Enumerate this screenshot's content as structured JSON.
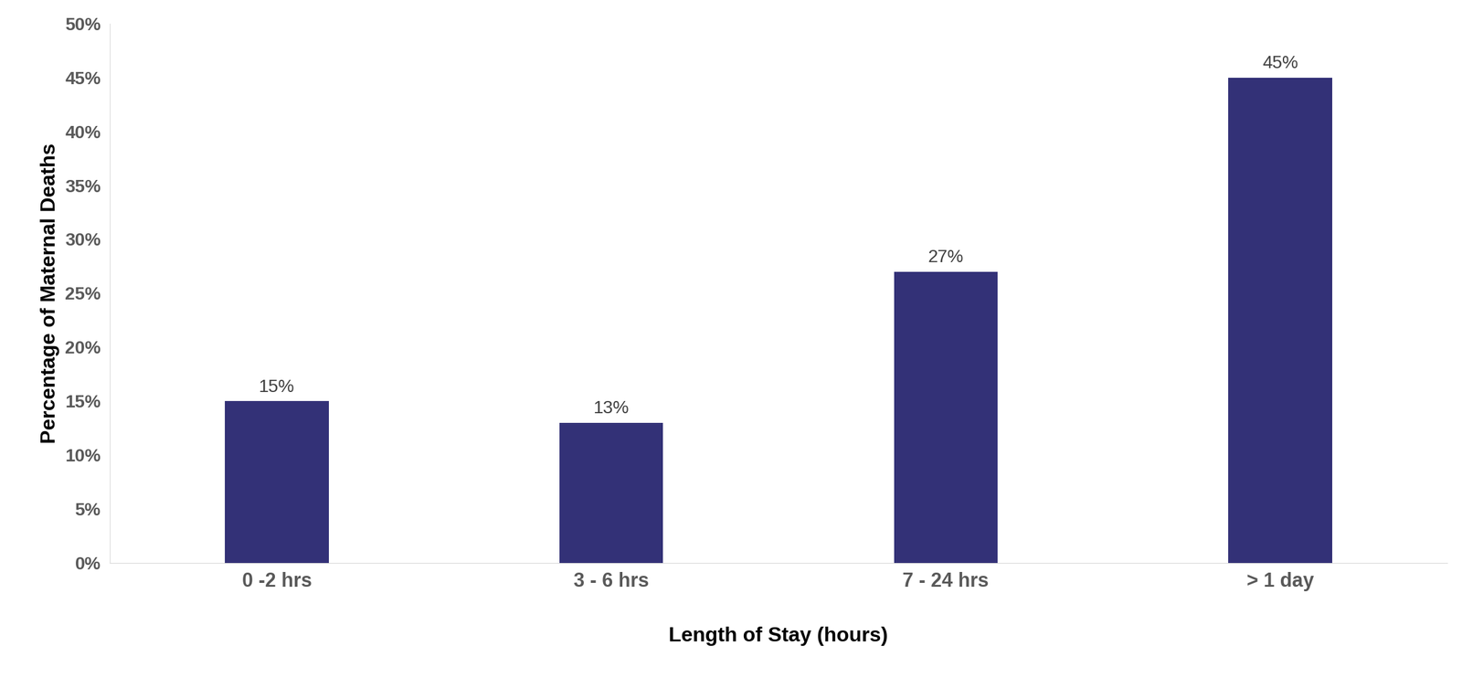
{
  "chart_data": {
    "type": "bar",
    "x_label": "Length of Stay (hours)",
    "y_label": "Percentage of Maternal Deaths",
    "categories": [
      "0 -2 hrs",
      "3 - 6 hrs",
      "7 - 24 hrs",
      "> 1 day"
    ],
    "values": [
      15,
      13,
      27,
      45
    ],
    "value_labels": [
      "15%",
      "13%",
      "27%",
      "45%"
    ],
    "data_labels": true,
    "color": "#333177",
    "ylim": [
      0,
      50
    ],
    "yticks": [
      {
        "value": 0,
        "label": "0%"
      },
      {
        "value": 5,
        "label": "5%"
      },
      {
        "value": 10,
        "label": "10%"
      },
      {
        "value": 15,
        "label": "15%"
      },
      {
        "value": 20,
        "label": "20%"
      },
      {
        "value": 25,
        "label": "25%"
      },
      {
        "value": 30,
        "label": "30%"
      },
      {
        "value": 35,
        "label": "35%"
      },
      {
        "value": 40,
        "label": "40%"
      },
      {
        "value": 45,
        "label": "45%"
      },
      {
        "value": 50,
        "label": "50%"
      }
    ],
    "grid": false
  }
}
